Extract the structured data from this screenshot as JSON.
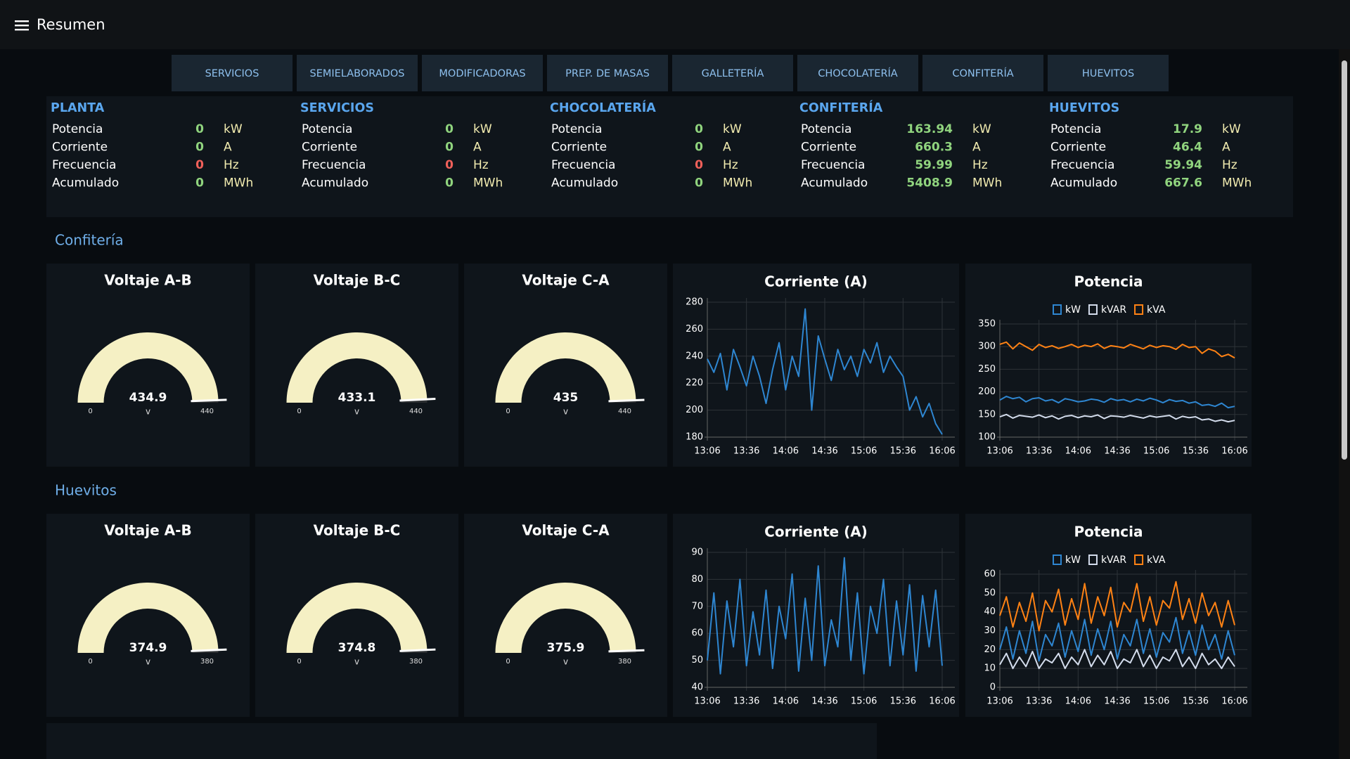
{
  "header": {
    "title": "Resumen"
  },
  "tabs": [
    "SERVICIOS",
    "SEMIELABORADOS",
    "MODIFICADORAS",
    "PREP. DE MASAS",
    "GALLETERÍA",
    "CHOCOLATERÍA",
    "CONFITERÍA",
    "HUEVITOS"
  ],
  "summary": [
    {
      "title": "PLANTA",
      "rows": [
        {
          "label": "Potencia",
          "value": 0,
          "unit": "kW",
          "color": "#90d47e"
        },
        {
          "label": "Corriente",
          "value": 0,
          "unit": "A",
          "color": "#90d47e"
        },
        {
          "label": "Frecuencia",
          "value": 0,
          "unit": "Hz",
          "color": "#f0605a"
        },
        {
          "label": "Acumulado",
          "value": 0,
          "unit": "MWh",
          "color": "#90d47e"
        }
      ]
    },
    {
      "title": "SERVICIOS",
      "rows": [
        {
          "label": "Potencia",
          "value": 0,
          "unit": "kW",
          "color": "#90d47e"
        },
        {
          "label": "Corriente",
          "value": 0,
          "unit": "A",
          "color": "#90d47e"
        },
        {
          "label": "Frecuencia",
          "value": 0,
          "unit": "Hz",
          "color": "#f0605a"
        },
        {
          "label": "Acumulado",
          "value": 0,
          "unit": "MWh",
          "color": "#90d47e"
        }
      ]
    },
    {
      "title": "CHOCOLATERÍA",
      "rows": [
        {
          "label": "Potencia",
          "value": 0,
          "unit": "kW",
          "color": "#90d47e"
        },
        {
          "label": "Corriente",
          "value": 0,
          "unit": "A",
          "color": "#90d47e"
        },
        {
          "label": "Frecuencia",
          "value": 0,
          "unit": "Hz",
          "color": "#f0605a"
        },
        {
          "label": "Acumulado",
          "value": 0,
          "unit": "MWh",
          "color": "#90d47e"
        }
      ]
    },
    {
      "title": "CONFITERÍA",
      "rows": [
        {
          "label": "Potencia",
          "value": 163.94,
          "unit": "kW",
          "color": "#90d47e"
        },
        {
          "label": "Corriente",
          "value": 660.3,
          "unit": "A",
          "color": "#90d47e"
        },
        {
          "label": "Frecuencia",
          "value": 59.99,
          "unit": "Hz",
          "color": "#90d47e"
        },
        {
          "label": "Acumulado",
          "value": 5408.9,
          "unit": "MWh",
          "color": "#90d47e"
        }
      ]
    },
    {
      "title": "HUEVITOS",
      "rows": [
        {
          "label": "Potencia",
          "value": 17.9,
          "unit": "kW",
          "color": "#90d47e"
        },
        {
          "label": "Corriente",
          "value": 46.4,
          "unit": "A",
          "color": "#90d47e"
        },
        {
          "label": "Frecuencia",
          "value": 59.94,
          "unit": "Hz",
          "color": "#90d47e"
        },
        {
          "label": "Acumulado",
          "value": 667.6,
          "unit": "MWh",
          "color": "#90d47e"
        }
      ]
    }
  ],
  "sections": [
    {
      "title": "Confitería",
      "gauges": [
        {
          "type": "gauge",
          "title": "Voltaje A-B",
          "value": 434.9,
          "unit": "v",
          "min": 0,
          "max": 440,
          "color": "#f5f0c4"
        },
        {
          "type": "gauge",
          "title": "Voltaje B-C",
          "value": 433.1,
          "unit": "v",
          "min": 0,
          "max": 440,
          "color": "#f5f0c4"
        },
        {
          "type": "gauge",
          "title": "Voltaje C-A",
          "value": 435,
          "unit": "v",
          "min": 0,
          "max": 440,
          "color": "#f5f0c4"
        }
      ],
      "charts": [
        {
          "type": "line",
          "title": "Corriente (A)",
          "x": [
            "13:06",
            "13:11",
            "13:16",
            "13:21",
            "13:26",
            "13:31",
            "13:36",
            "13:41",
            "13:46",
            "13:51",
            "13:56",
            "14:01",
            "14:06",
            "14:11",
            "14:16",
            "14:21",
            "14:26",
            "14:31",
            "14:36",
            "14:41",
            "14:46",
            "14:51",
            "14:56",
            "15:01",
            "15:06",
            "15:11",
            "15:16",
            "15:21",
            "15:26",
            "15:31",
            "15:36",
            "15:41",
            "15:46",
            "15:51",
            "15:56",
            "16:01",
            "16:06"
          ],
          "series": [
            {
              "color": "#2e86d1",
              "values": [
                238,
                228,
                242,
                215,
                245,
                232,
                218,
                240,
                225,
                205,
                230,
                250,
                215,
                240,
                225,
                275,
                200,
                255,
                238,
                222,
                245,
                230,
                240,
                225,
                245,
                235,
                250,
                228,
                240,
                232,
                225,
                200,
                210,
                195,
                205,
                190,
                182
              ]
            }
          ],
          "xlim": [
            "13:06",
            "16:06"
          ],
          "xticks": [
            "13:06",
            "13:36",
            "14:06",
            "14:36",
            "15:06",
            "15:36",
            "16:06"
          ],
          "ylim": [
            180,
            280
          ],
          "yticks": [
            180,
            200,
            220,
            240,
            260,
            280
          ],
          "grid": true
        },
        {
          "type": "line",
          "title": "Potencia",
          "x": [
            "13:06",
            "13:11",
            "13:16",
            "13:21",
            "13:26",
            "13:31",
            "13:36",
            "13:41",
            "13:46",
            "13:51",
            "13:56",
            "14:01",
            "14:06",
            "14:11",
            "14:16",
            "14:21",
            "14:26",
            "14:31",
            "14:36",
            "14:41",
            "14:46",
            "14:51",
            "14:56",
            "15:01",
            "15:06",
            "15:11",
            "15:16",
            "15:21",
            "15:26",
            "15:31",
            "15:36",
            "15:41",
            "15:46",
            "15:51",
            "15:56",
            "16:01",
            "16:06"
          ],
          "series": [
            {
              "name": "kW",
              "color": "#2e86d1",
              "values": [
                182,
                190,
                185,
                188,
                178,
                185,
                187,
                180,
                183,
                176,
                185,
                182,
                178,
                180,
                184,
                182,
                177,
                185,
                181,
                183,
                178,
                184,
                180,
                186,
                182,
                176,
                183,
                179,
                181,
                175,
                178,
                170,
                172,
                168,
                175,
                165,
                168
              ]
            },
            {
              "name": "kVAR",
              "color": "#d3dcec",
              "values": [
                145,
                150,
                142,
                148,
                146,
                144,
                149,
                143,
                147,
                140,
                146,
                148,
                143,
                147,
                145,
                149,
                141,
                147,
                146,
                144,
                148,
                145,
                142,
                147,
                144,
                146,
                148,
                140,
                146,
                143,
                145,
                138,
                140,
                135,
                138,
                134,
                137
              ]
            },
            {
              "name": "kVA",
              "color": "#ff8214",
              "values": [
                305,
                310,
                295,
                308,
                300,
                292,
                305,
                298,
                302,
                296,
                300,
                305,
                298,
                303,
                300,
                306,
                296,
                302,
                300,
                297,
                305,
                300,
                295,
                303,
                298,
                302,
                300,
                294,
                305,
                298,
                300,
                285,
                295,
                290,
                278,
                283,
                275
              ]
            }
          ],
          "xlim": [
            "13:06",
            "16:06"
          ],
          "xticks": [
            "13:06",
            "13:36",
            "14:06",
            "14:36",
            "15:06",
            "15:36",
            "16:06"
          ],
          "ylim": [
            100,
            350
          ],
          "yticks": [
            100,
            150,
            200,
            250,
            300,
            350
          ],
          "grid": true,
          "legend": "top"
        }
      ]
    },
    {
      "title": "Huevitos",
      "gauges": [
        {
          "type": "gauge",
          "title": "Voltaje A-B",
          "value": 374.9,
          "unit": "v",
          "min": 0,
          "max": 380,
          "color": "#f5f0c4"
        },
        {
          "type": "gauge",
          "title": "Voltaje B-C",
          "value": 374.8,
          "unit": "v",
          "min": 0,
          "max": 380,
          "color": "#f5f0c4"
        },
        {
          "type": "gauge",
          "title": "Voltaje C-A",
          "value": 375.9,
          "unit": "v",
          "min": 0,
          "max": 380,
          "color": "#f5f0c4"
        }
      ],
      "charts": [
        {
          "type": "line",
          "title": "Corriente (A)",
          "x": [
            "13:06",
            "13:11",
            "13:16",
            "13:21",
            "13:26",
            "13:31",
            "13:36",
            "13:41",
            "13:46",
            "13:51",
            "13:56",
            "14:01",
            "14:06",
            "14:11",
            "14:16",
            "14:21",
            "14:26",
            "14:31",
            "14:36",
            "14:41",
            "14:46",
            "14:51",
            "14:56",
            "15:01",
            "15:06",
            "15:11",
            "15:16",
            "15:21",
            "15:26",
            "15:31",
            "15:36",
            "15:41",
            "15:46",
            "15:51",
            "15:56",
            "16:01",
            "16:06"
          ],
          "series": [
            {
              "color": "#2e86d1",
              "values": [
                50,
                75,
                45,
                72,
                55,
                80,
                48,
                68,
                52,
                76,
                47,
                70,
                58,
                82,
                46,
                73,
                50,
                85,
                48,
                65,
                55,
                88,
                50,
                75,
                45,
                70,
                60,
                80,
                48,
                72,
                52,
                78,
                46,
                74,
                55,
                76,
                48
              ]
            }
          ],
          "xlim": [
            "13:06",
            "16:06"
          ],
          "xticks": [
            "13:06",
            "13:36",
            "14:06",
            "14:36",
            "15:06",
            "15:36",
            "16:06"
          ],
          "ylim": [
            40,
            90
          ],
          "yticks": [
            40,
            50,
            60,
            70,
            80,
            90
          ],
          "grid": true
        },
        {
          "type": "line",
          "title": "Potencia",
          "x": [
            "13:06",
            "13:11",
            "13:16",
            "13:21",
            "13:26",
            "13:31",
            "13:36",
            "13:41",
            "13:46",
            "13:51",
            "13:56",
            "14:01",
            "14:06",
            "14:11",
            "14:16",
            "14:21",
            "14:26",
            "14:31",
            "14:36",
            "14:41",
            "14:46",
            "14:51",
            "14:56",
            "15:01",
            "15:06",
            "15:11",
            "15:16",
            "15:21",
            "15:26",
            "15:31",
            "15:36",
            "15:41",
            "15:46",
            "15:51",
            "15:56",
            "16:01",
            "16:06"
          ],
          "series": [
            {
              "name": "kW",
              "color": "#2e86d1",
              "values": [
                20,
                32,
                15,
                30,
                18,
                35,
                14,
                28,
                22,
                34,
                16,
                30,
                19,
                36,
                17,
                31,
                20,
                35,
                15,
                28,
                22,
                36,
                18,
                31,
                16,
                29,
                24,
                37,
                18,
                30,
                17,
                33,
                20,
                28,
                15,
                30,
                17
              ]
            },
            {
              "name": "kVAR",
              "color": "#d3dcec",
              "values": [
                12,
                18,
                10,
                16,
                11,
                19,
                10,
                15,
                13,
                18,
                10,
                16,
                12,
                20,
                11,
                17,
                12,
                19,
                10,
                15,
                13,
                20,
                11,
                17,
                10,
                16,
                14,
                20,
                11,
                16,
                10,
                18,
                12,
                15,
                10,
                16,
                11
              ]
            },
            {
              "name": "kVA",
              "color": "#ff8214",
              "values": [
                38,
                48,
                32,
                45,
                35,
                50,
                30,
                46,
                40,
                52,
                33,
                47,
                36,
                55,
                34,
                48,
                38,
                53,
                32,
                45,
                40,
                55,
                35,
                48,
                33,
                46,
                42,
                56,
                36,
                47,
                34,
                50,
                38,
                45,
                32,
                46,
                33
              ]
            }
          ],
          "xlim": [
            "13:06",
            "16:06"
          ],
          "xticks": [
            "13:06",
            "13:36",
            "14:06",
            "14:36",
            "15:06",
            "15:36",
            "16:06"
          ],
          "ylim": [
            0,
            60
          ],
          "yticks": [
            0,
            10,
            20,
            30,
            40,
            50,
            60
          ],
          "grid": true,
          "legend": "top"
        }
      ]
    }
  ]
}
